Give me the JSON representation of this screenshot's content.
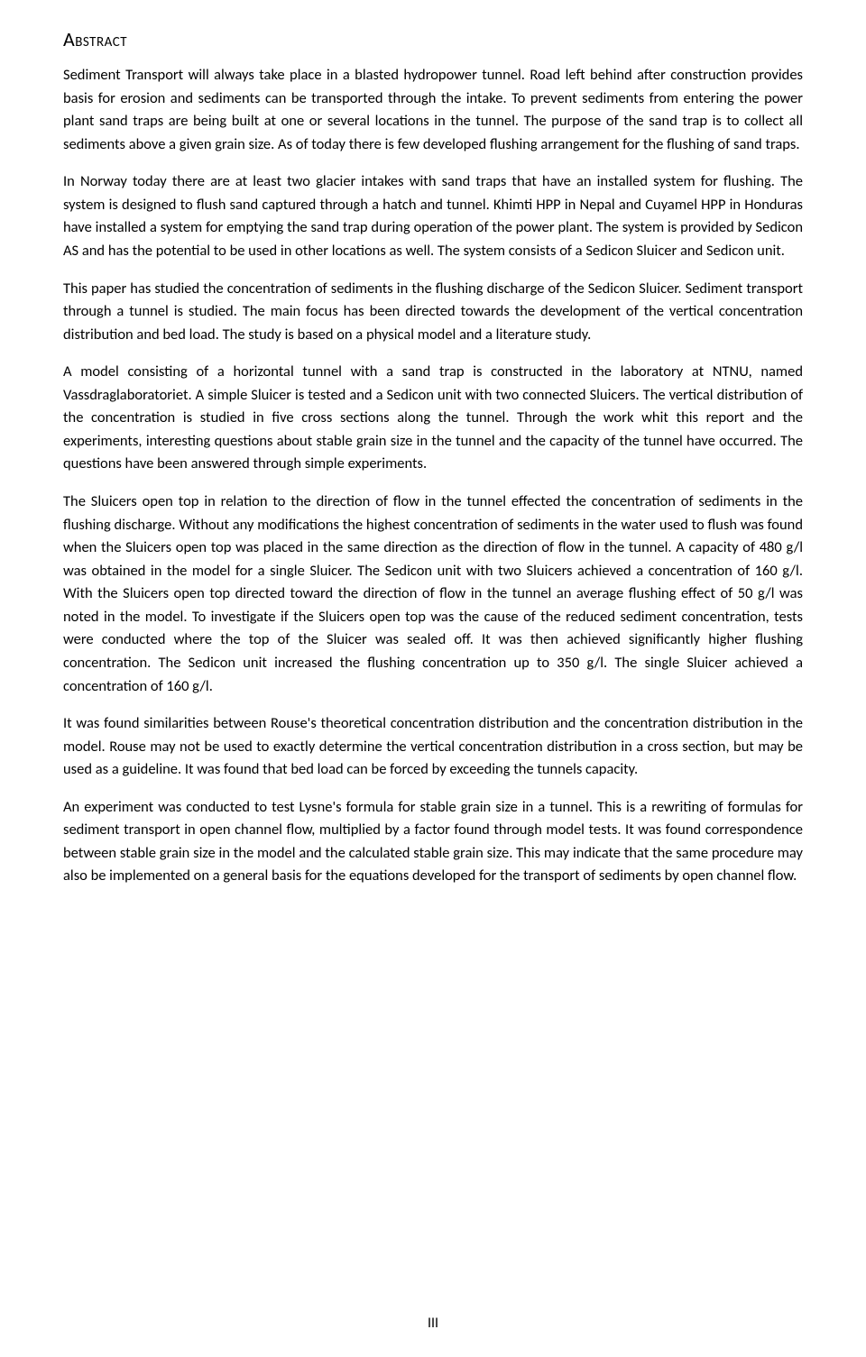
{
  "title": "Abstract",
  "paragraphs": [
    "Sediment Transport will always take place in a blasted hydropower tunnel. Road left behind after construction provides basis for erosion and sediments can be transported through the intake. To prevent sediments from entering the power plant sand traps are being built at one or several locations in the tunnel. The purpose of the sand trap is to collect all sediments above a given grain size. As of today there is few developed flushing arrangement for the flushing of sand traps.",
    "In Norway today there are at least two glacier intakes with sand traps that have an installed system for flushing. The system is designed to flush sand captured through a hatch and tunnel. Khimti HPP in Nepal and Cuyamel HPP in Honduras have installed a system for emptying the sand trap during operation of the power plant. The system is provided by Sedicon AS and has the potential to be used in other locations as well. The system consists of a Sedicon Sluicer and Sedicon unit.",
    "This paper has studied the concentration of sediments in the flushing discharge of the Sedicon Sluicer. Sediment transport through a tunnel is studied. The main focus has been directed towards the development of the vertical concentration distribution and bed load. The study is based on a physical model and a literature study.",
    "A model consisting of a horizontal tunnel with a sand trap is constructed in the laboratory at NTNU, named Vassdraglaboratoriet. A simple Sluicer is tested and a Sedicon unit with two connected Sluicers. The vertical distribution of the concentration is studied in five cross sections along the tunnel. Through the work whit this report and the experiments, interesting questions about stable grain size in the tunnel and the capacity of the tunnel have occurred. The questions have been answered through simple experiments.",
    "The Sluicers open top in relation to the direction of flow in the tunnel effected the concentration of sediments in the flushing discharge. Without any modifications the highest concentration of sediments in the water used to flush was found when the Sluicers open top was placed in the same direction as the direction of flow in the tunnel. A capacity of 480 g/l was obtained in the model for a single Sluicer. The Sedicon unit with two Sluicers achieved a concentration of 160 g/l. With the Sluicers open top directed toward the direction of flow in the tunnel an average flushing effect of 50 g/l was noted in the model. To investigate if the Sluicers open top was the cause of the reduced sediment concentration, tests were conducted where the top of the Sluicer was sealed off. It was then achieved significantly higher flushing concentration. The Sedicon unit increased the flushing concentration up to 350 g/l. The single Sluicer achieved a concentration of 160 g/l.",
    "It was found similarities between Rouse's theoretical concentration distribution and the concentration distribution in the model. Rouse may not be used to exactly determine the vertical concentration distribution in a cross section, but may be used as a guideline. It was found that bed load can be forced by exceeding the tunnels capacity.",
    "An experiment was conducted to test Lysne's formula for stable grain size in a tunnel. This is a rewriting of formulas for sediment transport in open channel flow, multiplied by a factor found through model tests. It was found correspondence between stable grain size in the model and the calculated stable grain size. This may indicate that the same procedure may also be implemented on a general basis for the equations developed for the transport of sediments by open channel flow."
  ],
  "pageNumber": "III",
  "colors": {
    "background": "#ffffff",
    "text": "#000000"
  },
  "typography": {
    "fontFamily": "Calibri",
    "titleFontSize": 22,
    "bodyFontSize": 16.5,
    "lineHeight": 1.55
  }
}
